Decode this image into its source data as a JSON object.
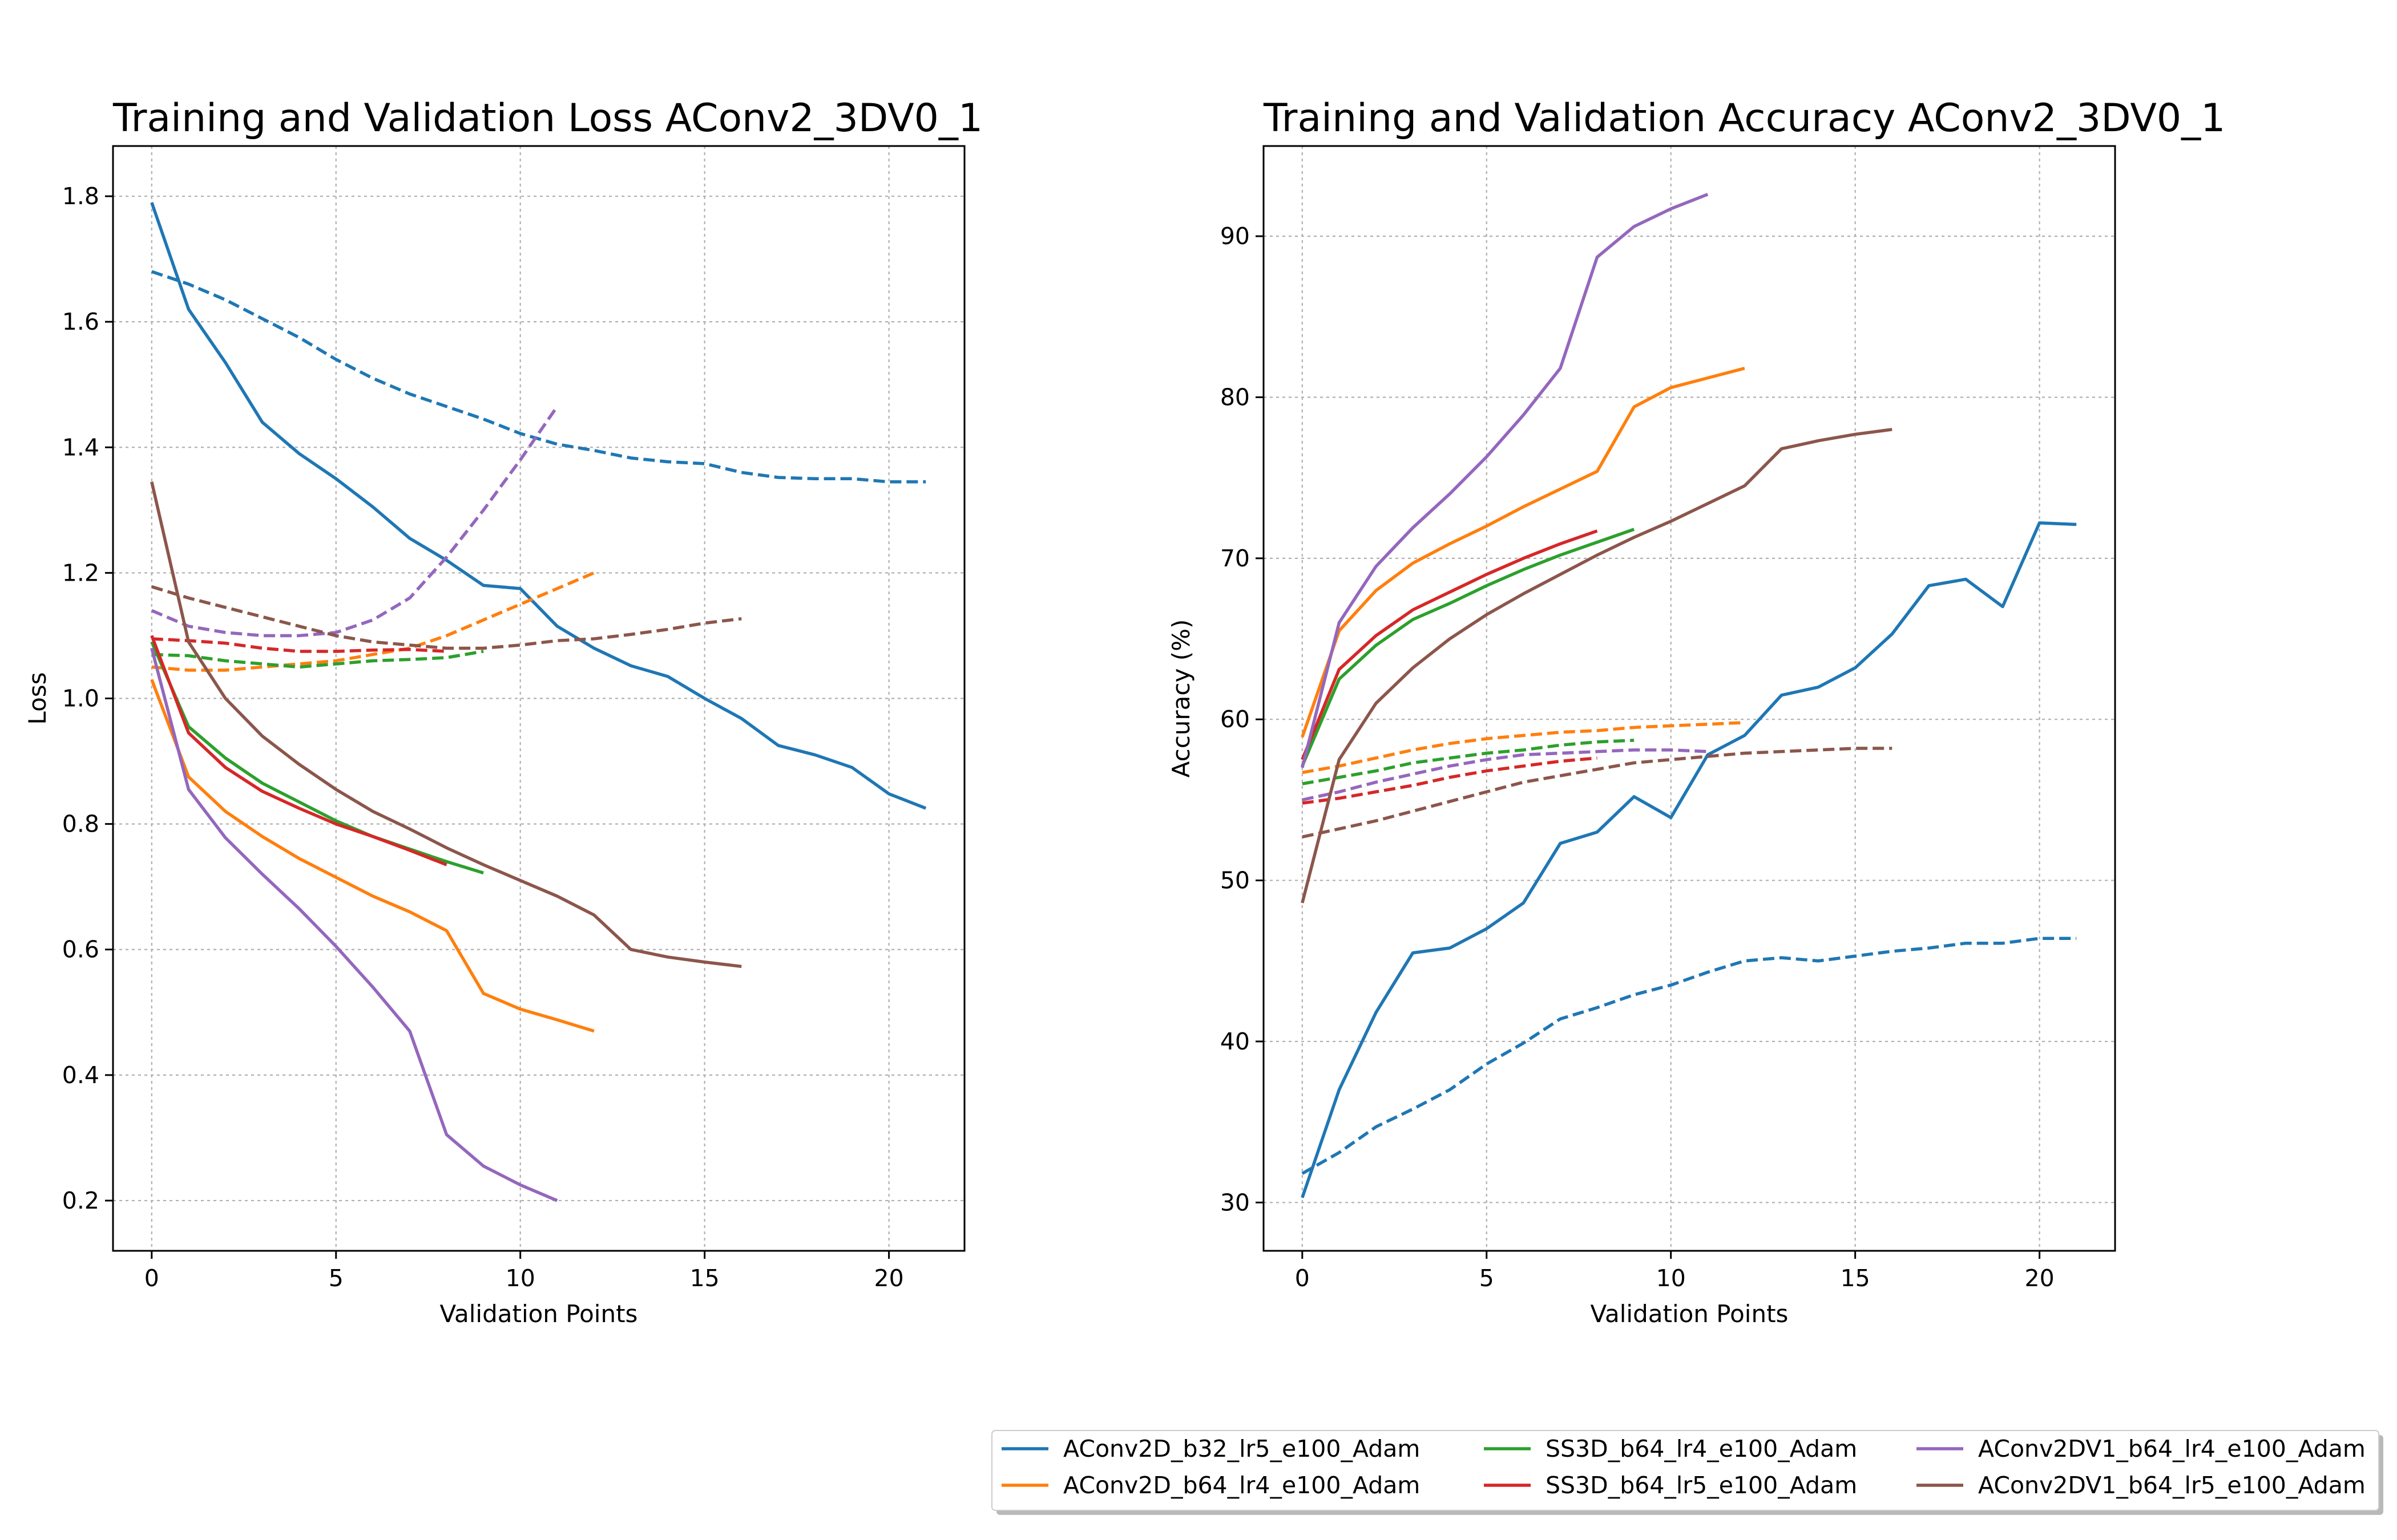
{
  "legend": {
    "columns": 3,
    "placement": "lower-right"
  },
  "chart_data": [
    {
      "type": "line",
      "title": "Training and Validation Loss AConv2_3DV0_1",
      "xlabel": "Validation Points",
      "ylabel": "Loss",
      "xlim": [
        -1.05,
        22.05
      ],
      "ylim": [
        0.12,
        1.88
      ],
      "xticks": [
        0,
        5,
        10,
        15,
        20
      ],
      "yticks": [
        0.2,
        0.4,
        0.6,
        0.8,
        1.0,
        1.2,
        1.4,
        1.6,
        1.8
      ],
      "grid": true,
      "series": [
        {
          "name": "AConv2D_b32_lr5_e100_Adam",
          "color": "#1f77b4",
          "style": "solid",
          "y": [
            1.79,
            1.62,
            1.535,
            1.44,
            1.39,
            1.35,
            1.305,
            1.255,
            1.22,
            1.18,
            1.175,
            1.115,
            1.08,
            1.052,
            1.035,
            1.0,
            0.968,
            0.925,
            0.91,
            0.89,
            0.848,
            0.825
          ]
        },
        {
          "name": "AConv2D_b32_lr5_e100_Adam",
          "color": "#1f77b4",
          "style": "dashed",
          "y": [
            1.68,
            1.66,
            1.635,
            1.605,
            1.575,
            1.54,
            1.51,
            1.485,
            1.465,
            1.445,
            1.422,
            1.405,
            1.395,
            1.383,
            1.377,
            1.374,
            1.36,
            1.352,
            1.35,
            1.35,
            1.345,
            1.345
          ]
        },
        {
          "name": "AConv2D_b64_lr4_e100_Adam",
          "color": "#ff7f0e",
          "style": "solid",
          "y": [
            1.03,
            0.875,
            0.82,
            0.78,
            0.745,
            0.715,
            0.685,
            0.66,
            0.63,
            0.53,
            0.505,
            0.488,
            0.47
          ]
        },
        {
          "name": "AConv2D_b64_lr4_e100_Adam",
          "color": "#ff7f0e",
          "style": "dashed",
          "y": [
            1.05,
            1.045,
            1.045,
            1.05,
            1.055,
            1.06,
            1.07,
            1.08,
            1.1,
            1.125,
            1.15,
            1.175,
            1.2
          ]
        },
        {
          "name": "SS3D_b64_lr4_e100_Adam",
          "color": "#2ca02c",
          "style": "solid",
          "y": [
            1.09,
            0.955,
            0.905,
            0.865,
            0.835,
            0.805,
            0.78,
            0.76,
            0.74,
            0.722
          ]
        },
        {
          "name": "SS3D_b64_lr4_e100_Adam",
          "color": "#2ca02c",
          "style": "dashed",
          "y": [
            1.07,
            1.068,
            1.06,
            1.055,
            1.05,
            1.055,
            1.06,
            1.062,
            1.065,
            1.075
          ]
        },
        {
          "name": "SS3D_b64_lr5_e100_Adam",
          "color": "#d62728",
          "style": "solid",
          "y": [
            1.1,
            0.945,
            0.89,
            0.852,
            0.825,
            0.8,
            0.78,
            0.758,
            0.735
          ]
        },
        {
          "name": "SS3D_b64_lr5_e100_Adam",
          "color": "#d62728",
          "style": "dashed",
          "y": [
            1.095,
            1.092,
            1.088,
            1.08,
            1.075,
            1.075,
            1.077,
            1.078,
            1.075
          ]
        },
        {
          "name": "AConv2DV1_b64_lr4_e100_Adam",
          "color": "#9467bd",
          "style": "solid",
          "y": [
            1.08,
            0.855,
            0.778,
            0.72,
            0.665,
            0.605,
            0.54,
            0.47,
            0.305,
            0.255,
            0.225,
            0.2
          ]
        },
        {
          "name": "AConv2DV1_b64_lr4_e100_Adam",
          "color": "#9467bd",
          "style": "dashed",
          "y": [
            1.14,
            1.115,
            1.105,
            1.1,
            1.1,
            1.105,
            1.125,
            1.16,
            1.225,
            1.3,
            1.38,
            1.465
          ]
        },
        {
          "name": "AConv2DV1_b64_lr5_e100_Adam",
          "color": "#8c564b",
          "style": "solid",
          "y": [
            1.345,
            1.09,
            1.0,
            0.94,
            0.895,
            0.855,
            0.82,
            0.792,
            0.762,
            0.735,
            0.71,
            0.685,
            0.655,
            0.6,
            0.588,
            0.58,
            0.573
          ]
        },
        {
          "name": "AConv2DV1_b64_lr5_e100_Adam",
          "color": "#8c564b",
          "style": "dashed",
          "y": [
            1.178,
            1.16,
            1.145,
            1.13,
            1.115,
            1.1,
            1.09,
            1.085,
            1.08,
            1.08,
            1.085,
            1.092,
            1.095,
            1.102,
            1.11,
            1.12,
            1.127
          ]
        }
      ]
    },
    {
      "type": "line",
      "title": "Training and Validation Accuracy AConv2_3DV0_1",
      "xlabel": "Validation Points",
      "ylabel": "Accuracy (%)",
      "xlim": [
        -1.05,
        22.05
      ],
      "ylim": [
        27.0,
        95.6
      ],
      "xticks": [
        0,
        5,
        10,
        15,
        20
      ],
      "yticks": [
        30,
        40,
        50,
        60,
        70,
        80,
        90
      ],
      "grid": true,
      "series": [
        {
          "name": "AConv2D_b32_lr5_e100_Adam",
          "color": "#1f77b4",
          "style": "solid",
          "y": [
            30.3,
            37.0,
            41.8,
            45.5,
            45.8,
            47.0,
            48.6,
            52.3,
            53.0,
            55.2,
            53.9,
            57.8,
            59.0,
            61.5,
            62.0,
            63.2,
            65.3,
            68.3,
            68.7,
            67.0,
            72.2,
            72.1
          ]
        },
        {
          "name": "AConv2D_b32_lr5_e100_Adam",
          "color": "#1f77b4",
          "style": "dashed",
          "y": [
            31.8,
            33.1,
            34.7,
            35.8,
            37.0,
            38.6,
            39.9,
            41.4,
            42.1,
            42.9,
            43.5,
            44.3,
            45.0,
            45.2,
            45.0,
            45.3,
            45.6,
            45.8,
            46.1,
            46.1,
            46.4,
            46.4
          ]
        },
        {
          "name": "AConv2D_b64_lr4_e100_Adam",
          "color": "#ff7f0e",
          "style": "solid",
          "y": [
            58.9,
            65.5,
            68.0,
            69.7,
            70.9,
            72.0,
            73.2,
            74.3,
            75.4,
            79.4,
            80.6,
            81.2,
            81.8
          ]
        },
        {
          "name": "AConv2D_b64_lr4_e100_Adam",
          "color": "#ff7f0e",
          "style": "dashed",
          "y": [
            56.7,
            57.1,
            57.6,
            58.1,
            58.5,
            58.8,
            59.0,
            59.2,
            59.3,
            59.5,
            59.6,
            59.7,
            59.8
          ]
        },
        {
          "name": "SS3D_b64_lr4_e100_Adam",
          "color": "#2ca02c",
          "style": "solid",
          "y": [
            57.1,
            62.5,
            64.6,
            66.2,
            67.2,
            68.3,
            69.3,
            70.2,
            71.0,
            71.8
          ]
        },
        {
          "name": "SS3D_b64_lr4_e100_Adam",
          "color": "#2ca02c",
          "style": "dashed",
          "y": [
            56.0,
            56.4,
            56.8,
            57.3,
            57.6,
            57.9,
            58.1,
            58.4,
            58.6,
            58.7
          ]
        },
        {
          "name": "SS3D_b64_lr5_e100_Adam",
          "color": "#d62728",
          "style": "solid",
          "y": [
            57.5,
            63.1,
            65.2,
            66.8,
            67.9,
            69.0,
            70.0,
            70.9,
            71.7
          ]
        },
        {
          "name": "SS3D_b64_lr5_e100_Adam",
          "color": "#d62728",
          "style": "dashed",
          "y": [
            54.8,
            55.1,
            55.5,
            55.9,
            56.4,
            56.8,
            57.1,
            57.4,
            57.6
          ]
        },
        {
          "name": "AConv2DV1_b64_lr4_e100_Adam",
          "color": "#9467bd",
          "style": "solid",
          "y": [
            57.0,
            66.0,
            69.5,
            71.9,
            74.0,
            76.3,
            78.9,
            81.8,
            88.7,
            90.6,
            91.7,
            92.6
          ]
        },
        {
          "name": "AConv2DV1_b64_lr4_e100_Adam",
          "color": "#9467bd",
          "style": "dashed",
          "y": [
            55.0,
            55.5,
            56.1,
            56.6,
            57.1,
            57.5,
            57.8,
            57.9,
            58.0,
            58.1,
            58.1,
            58.0
          ]
        },
        {
          "name": "AConv2DV1_b64_lr5_e100_Adam",
          "color": "#8c564b",
          "style": "solid",
          "y": [
            48.6,
            57.5,
            61.0,
            63.2,
            65.0,
            66.5,
            67.8,
            69.0,
            70.2,
            71.3,
            72.3,
            73.4,
            74.5,
            76.8,
            77.3,
            77.7,
            78.0
          ]
        },
        {
          "name": "AConv2DV1_b64_lr5_e100_Adam",
          "color": "#8c564b",
          "style": "dashed",
          "y": [
            52.7,
            53.2,
            53.7,
            54.3,
            54.9,
            55.5,
            56.1,
            56.5,
            56.9,
            57.3,
            57.5,
            57.7,
            57.9,
            58.0,
            58.1,
            58.2,
            58.2
          ]
        }
      ]
    }
  ]
}
